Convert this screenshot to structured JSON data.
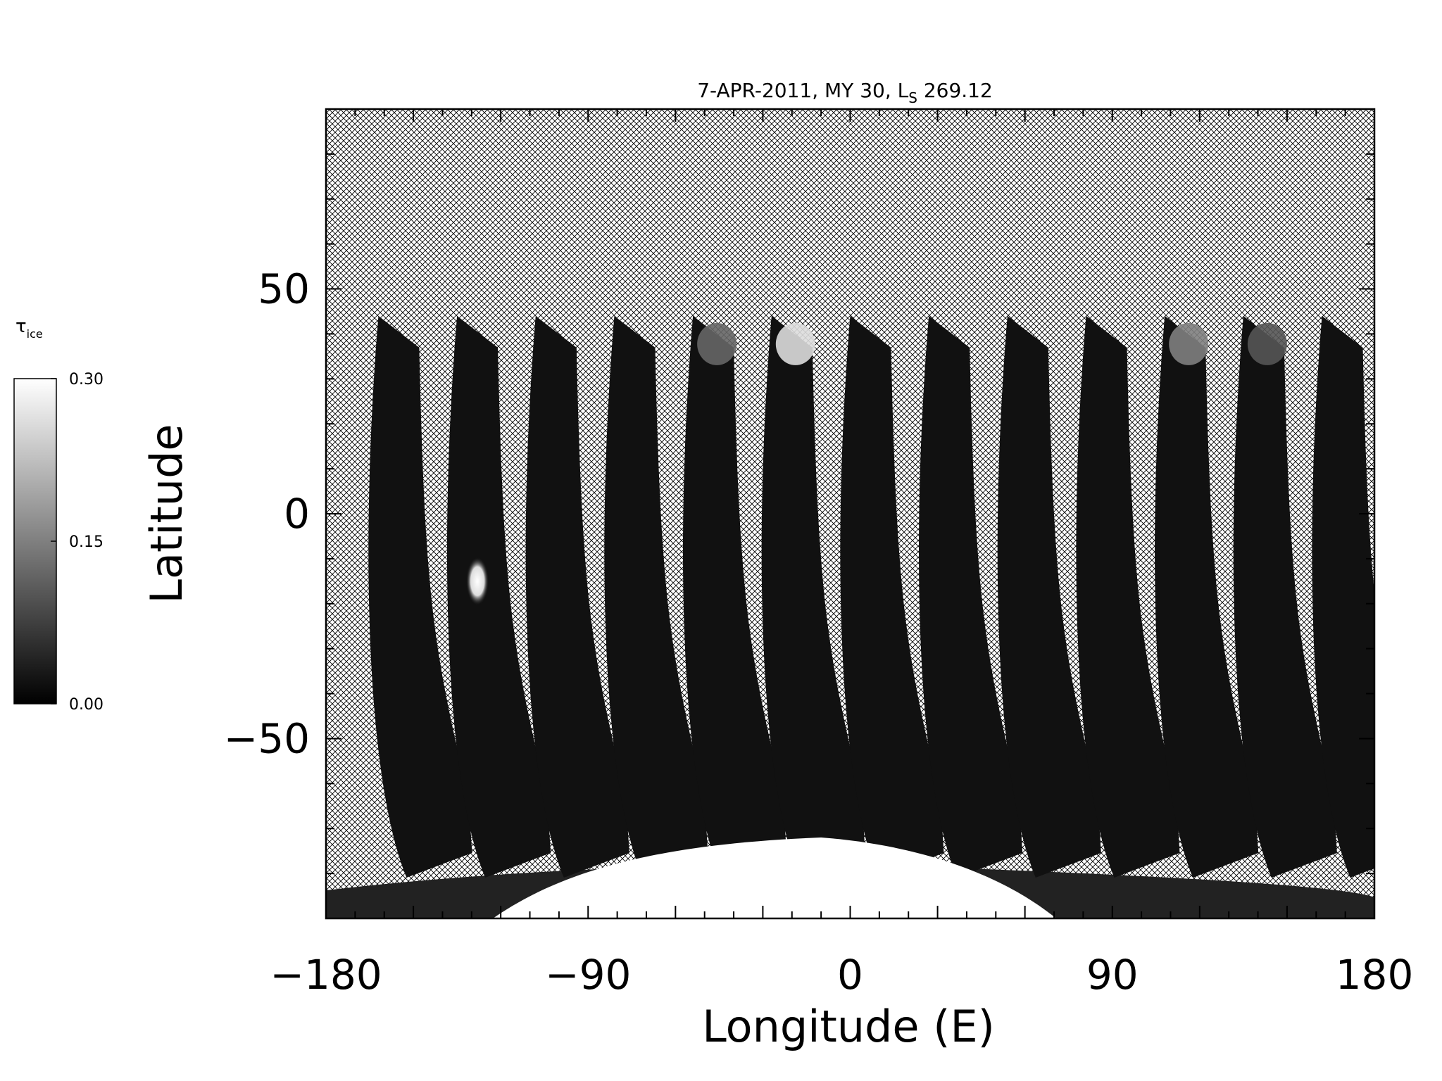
{
  "chart_data": {
    "type": "heatmap",
    "title": "7-APR-2011, MY 30,  L",
    "title_subscript": "S",
    "title_suffix": " 269.12",
    "xlabel": "Longitude (E)",
    "ylabel": "Latitude",
    "xlim": [
      -180,
      180
    ],
    "ylim": [
      -90,
      90
    ],
    "xticks": [
      "-180",
      "-90",
      "0",
      "90",
      "180"
    ],
    "xtick_values": [
      -180,
      -90,
      0,
      90,
      180
    ],
    "yticks": [
      "50",
      "0",
      "-50"
    ],
    "ytick_values": [
      50,
      0,
      -50
    ],
    "colorbar": {
      "label": "τ",
      "label_subscript": "ice",
      "ticks": [
        "0.30",
        "0.15",
        "0.00"
      ],
      "tick_values": [
        0.3,
        0.15,
        0.0
      ],
      "range": [
        0.0,
        0.3
      ],
      "colormap": "grayscale"
    },
    "no_data_pattern": "crosshatch",
    "swaths": {
      "count": 13,
      "start_longitudes": [
        -162,
        -135,
        -108,
        -81,
        -54,
        -27,
        0,
        27,
        54,
        81,
        108,
        135,
        162
      ],
      "lat_top": 44,
      "lat_bottom": -77,
      "typical_value": 0.02,
      "bright_top_values": [
        0.02,
        0.03,
        0.03,
        0.03,
        0.12,
        0.26,
        0.03,
        0.02,
        0.02,
        0.02,
        0.15,
        0.1,
        0.04
      ]
    },
    "bright_feature": {
      "lon": -128,
      "lat": -15,
      "value": 0.3
    },
    "polar_cap": {
      "lon_center": -10,
      "lat_top": -72,
      "value": 0.3
    }
  },
  "colors": {
    "background": "#ffffff",
    "hatch": "#000000",
    "swath": "#1a1a1a"
  }
}
